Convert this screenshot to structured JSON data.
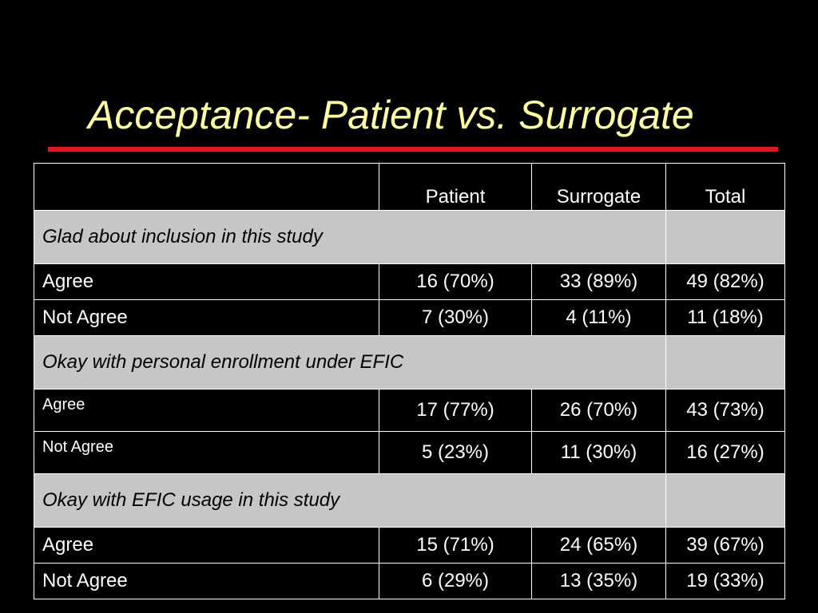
{
  "slide": {
    "title": "Acceptance- Patient vs. Surrogate"
  },
  "table": {
    "columns": [
      "",
      "Patient",
      "Surrogate",
      "Total"
    ],
    "sections": [
      {
        "label": "Glad about inclusion in this study",
        "rows": [
          {
            "label": "Agree",
            "patient": "16 (70%)",
            "surrogate": "33 (89%)",
            "total": "49 (82%)"
          },
          {
            "label": "Not Agree",
            "patient": "7 (30%)",
            "surrogate": "4 (11%)",
            "total": "11 (18%)"
          }
        ]
      },
      {
        "label": "Okay with personal enrollment under EFIC",
        "rows": [
          {
            "label": "Agree",
            "patient": "17 (77%)",
            "surrogate": "26 (70%)",
            "total": "43 (73%)"
          },
          {
            "label": "Not Agree",
            "patient": "5 (23%)",
            "surrogate": "11 (30%)",
            "total": "16 (27%)"
          }
        ]
      },
      {
        "label": "Okay with EFIC usage in this study",
        "rows": [
          {
            "label": "Agree",
            "patient": "15 (71%)",
            "surrogate": "24 (65%)",
            "total": "39 (67%)"
          },
          {
            "label": "Not Agree",
            "patient": "6 (29%)",
            "surrogate": "13 (35%)",
            "total": "19 (33%)"
          }
        ]
      }
    ]
  },
  "colors": {
    "background": "#000000",
    "title": "#ffff99",
    "rule": "#e8141c",
    "section_fill": "#c6c6c6"
  }
}
